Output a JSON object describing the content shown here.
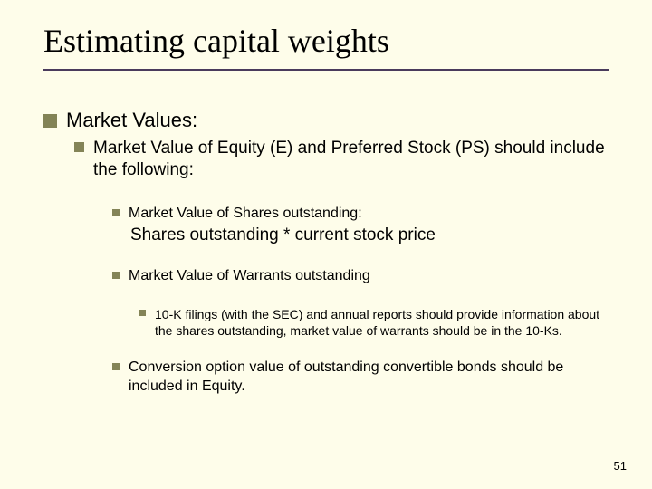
{
  "colors": {
    "background": "#fefdea",
    "title_rule": "#4a3b5c",
    "bullet": "#838356",
    "text": "#000000"
  },
  "typography": {
    "title_font": "Times New Roman",
    "body_font": "Arial",
    "title_size_pt": 36,
    "level1_size_pt": 22,
    "level2_size_pt": 19,
    "level3_size_pt": 16,
    "level4_size_pt": 14,
    "formula_size_pt": 19
  },
  "slide": {
    "title": "Estimating capital weights",
    "page_number": "51",
    "bullets": {
      "l1": "Market Values:",
      "l2": "Market Value of Equity (E) and Preferred Stock (PS) should include the following:",
      "l3a": "Market Value of Shares outstanding:",
      "l3a_formula": "Shares outstanding * current stock price",
      "l3b": "Market Value of Warrants outstanding",
      "l4": "10-K filings (with the SEC) and annual reports should provide information about the shares outstanding, market value of warrants should be in the 10-Ks.",
      "l3c": "Conversion option value of outstanding convertible bonds should be included in Equity."
    }
  }
}
